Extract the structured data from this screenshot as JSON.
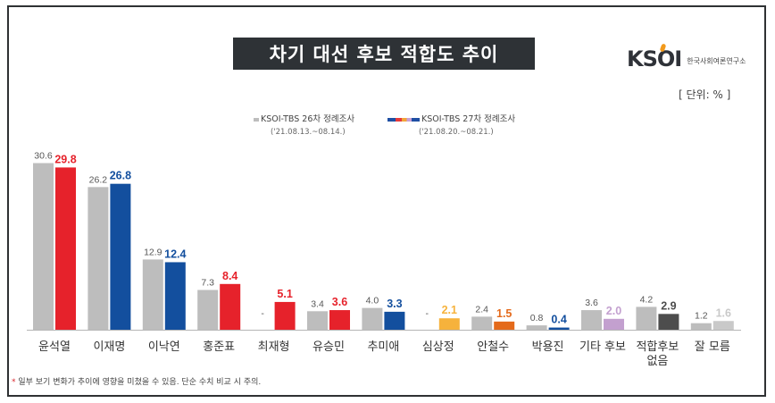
{
  "title": "차기 대선 후보 적합도 추이",
  "logo": {
    "text": "KSOI",
    "subtitle": "한국사회여론연구소"
  },
  "unit": "[ 단위: % ]",
  "legend": [
    {
      "label": "KSOI-TBS 26차 정례조사",
      "period": "('21.08.13.~08.14.)"
    },
    {
      "label": "KSOI-TBS 27차 정례조사",
      "period": "('21.08.20.~08.21.)"
    }
  ],
  "footnote": {
    "star": "*",
    "text": " 일부 보기 변화가 추이에 영향을 미쳤을 수 있음. 단순 수치 비교 시 주의."
  },
  "colors": {
    "prev": "#bdbdbd",
    "red": "#e6222b",
    "blue": "#134f9e",
    "yellow": "#f6b23c",
    "orange": "#e46a1b",
    "purple": "#c3a0cf",
    "dark": "#4d4d4d",
    "lightgrey": "#c9c9c9"
  },
  "chart_data": {
    "type": "bar",
    "categories": [
      "윤석열",
      "이재명",
      "이낙연",
      "홍준표",
      "최재형",
      "유승민",
      "추미애",
      "심상정",
      "안철수",
      "박용진",
      "기타 후보",
      "적합후보 없음",
      "잘 모름"
    ],
    "series": [
      {
        "name": "KSOI-TBS 26차 정례조사",
        "values": [
          30.6,
          26.2,
          12.9,
          7.3,
          null,
          3.4,
          4.0,
          null,
          2.4,
          0.8,
          3.6,
          4.2,
          1.2
        ]
      },
      {
        "name": "KSOI-TBS 27차 정례조사",
        "values": [
          29.8,
          26.8,
          12.4,
          8.4,
          5.1,
          3.6,
          3.3,
          2.1,
          1.5,
          0.4,
          2.0,
          2.9,
          1.6
        ]
      }
    ],
    "labels_prev": [
      "30.6",
      "26.2",
      "12.9",
      "7.3",
      "-",
      "3.4",
      "4.0",
      "-",
      "2.4",
      "0.8",
      "3.6",
      "4.2",
      "1.2"
    ],
    "labels_curr": [
      "29.8",
      "26.8",
      "12.4",
      "8.4",
      "5.1",
      "3.6",
      "3.3",
      "2.1",
      "1.5",
      "0.4",
      "2.0",
      "2.9",
      "1.6"
    ],
    "current_colors": [
      "red",
      "blue",
      "blue",
      "red",
      "red",
      "red",
      "blue",
      "yellow",
      "orange",
      "blue",
      "purple",
      "dark",
      "lightgrey"
    ],
    "ylim": [
      0,
      32
    ],
    "xlabel": "",
    "ylabel": ""
  }
}
